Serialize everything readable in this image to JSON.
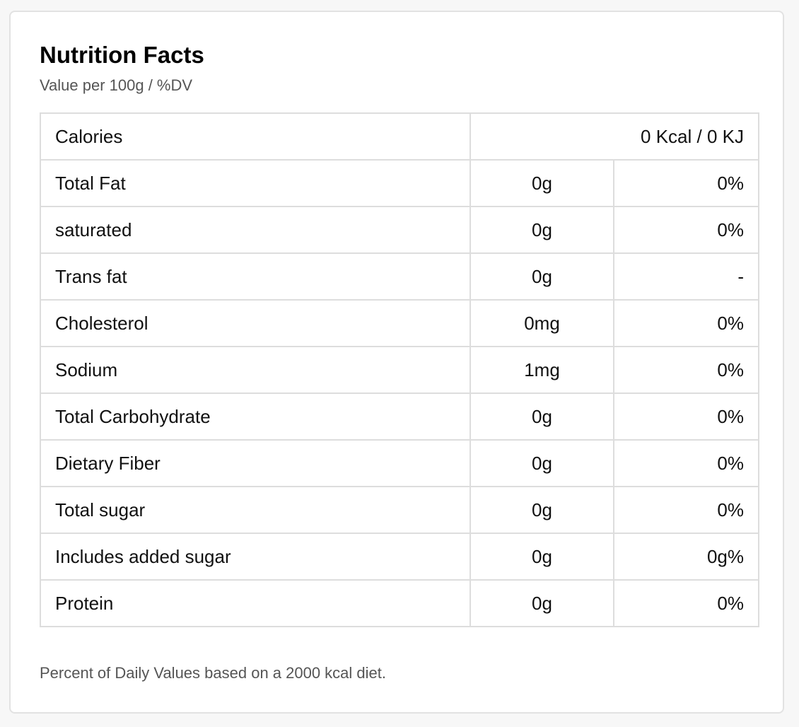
{
  "header": {
    "title": "Nutrition Facts",
    "subtitle": "Value per 100g / %DV"
  },
  "calories": {
    "label": "Calories",
    "value": "0 Kcal / 0 KJ"
  },
  "rows": [
    {
      "nutrient": "Total Fat",
      "amount": "0g",
      "dv": "0%"
    },
    {
      "nutrient": "saturated",
      "amount": "0g",
      "dv": "0%"
    },
    {
      "nutrient": "Trans fat",
      "amount": "0g",
      "dv": "-"
    },
    {
      "nutrient": "Cholesterol",
      "amount": "0mg",
      "dv": "0%"
    },
    {
      "nutrient": "Sodium",
      "amount": "1mg",
      "dv": "0%"
    },
    {
      "nutrient": "Total Carbohydrate",
      "amount": "0g",
      "dv": "0%"
    },
    {
      "nutrient": "Dietary Fiber",
      "amount": "0g",
      "dv": "0%"
    },
    {
      "nutrient": "Total sugar",
      "amount": "0g",
      "dv": "0%"
    },
    {
      "nutrient": "Includes added sugar",
      "amount": "0g",
      "dv": "0g%"
    },
    {
      "nutrient": "Protein",
      "amount": "0g",
      "dv": "0%"
    }
  ],
  "footnote": "Percent of Daily Values based on a 2000 kcal diet."
}
